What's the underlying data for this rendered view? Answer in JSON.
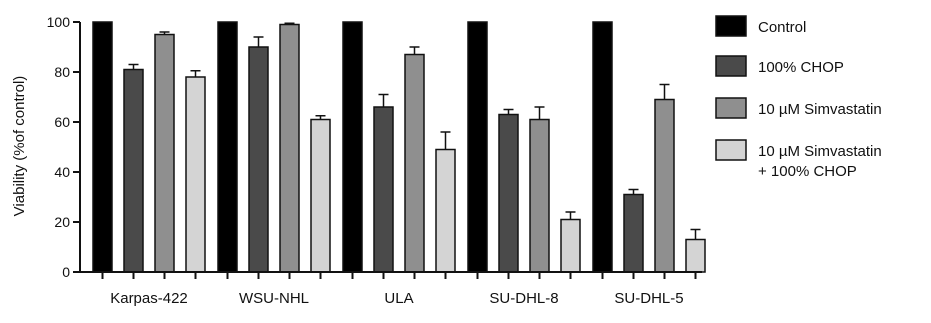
{
  "chart_data": {
    "type": "bar",
    "title": "",
    "xlabel": "",
    "ylabel": "Viability (%of control)",
    "ylim": [
      0,
      100
    ],
    "yticks": [
      0,
      20,
      40,
      60,
      80,
      100
    ],
    "categories": [
      "Karpas-422",
      "WSU-NHL",
      "ULA",
      "SU-DHL-8",
      "SU-DHL-5"
    ],
    "legend_position": "right",
    "grid": false,
    "series": [
      {
        "name": "Control",
        "color": "#000000",
        "values": [
          100,
          100,
          100,
          100,
          100
        ],
        "errors": [
          0,
          0,
          0,
          0,
          0
        ]
      },
      {
        "name": "100% CHOP",
        "color": "#4a4a4a",
        "values": [
          81,
          90,
          66,
          63,
          31
        ],
        "errors": [
          2,
          4,
          5,
          2,
          2
        ]
      },
      {
        "name": "10 µM Simvastatin",
        "color": "#8f8f8f",
        "values": [
          95,
          99,
          87,
          61,
          69
        ],
        "errors": [
          1,
          0.5,
          3,
          5,
          6
        ]
      },
      {
        "name": "10 µM Simvastatin\n+ 100% CHOP",
        "color": "#d4d4d4",
        "values": [
          78,
          61,
          49,
          21,
          13
        ],
        "errors": [
          2.5,
          1.5,
          7,
          3,
          4
        ]
      }
    ]
  }
}
